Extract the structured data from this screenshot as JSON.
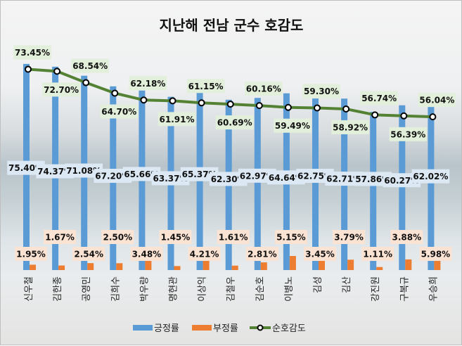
{
  "chart_data": {
    "type": "bar",
    "title": "지난해 전남 군수 호감도",
    "categories": [
      "신우철",
      "김한종",
      "공영민",
      "김희수",
      "박우량",
      "명현관",
      "이상익",
      "김철우",
      "김순호",
      "이병노",
      "김성",
      "김산",
      "강진원",
      "구복규",
      "우승희"
    ],
    "series": [
      {
        "name": "긍정률",
        "type": "bar",
        "color": "#5b9bd5",
        "values": [
          75.4,
          74.37,
          71.08,
          67.2,
          65.66,
          63.37,
          65.37,
          62.3,
          62.97,
          64.64,
          62.75,
          62.71,
          57.86,
          60.27,
          62.02
        ]
      },
      {
        "name": "부정률",
        "type": "bar",
        "color": "#ed7d31",
        "values": [
          1.95,
          1.67,
          2.54,
          2.5,
          3.48,
          1.45,
          4.21,
          1.61,
          2.81,
          5.15,
          3.45,
          3.79,
          1.11,
          3.88,
          5.98
        ]
      },
      {
        "name": "순호감도",
        "type": "line",
        "color": "#548235",
        "values": [
          73.45,
          72.7,
          68.54,
          64.7,
          62.18,
          61.91,
          61.15,
          60.69,
          60.16,
          59.49,
          59.3,
          58.92,
          56.74,
          56.39,
          56.04
        ]
      }
    ],
    "value_suffix": "%",
    "ylim": [
      0,
      80
    ],
    "grid": false,
    "legend": "bottom"
  }
}
